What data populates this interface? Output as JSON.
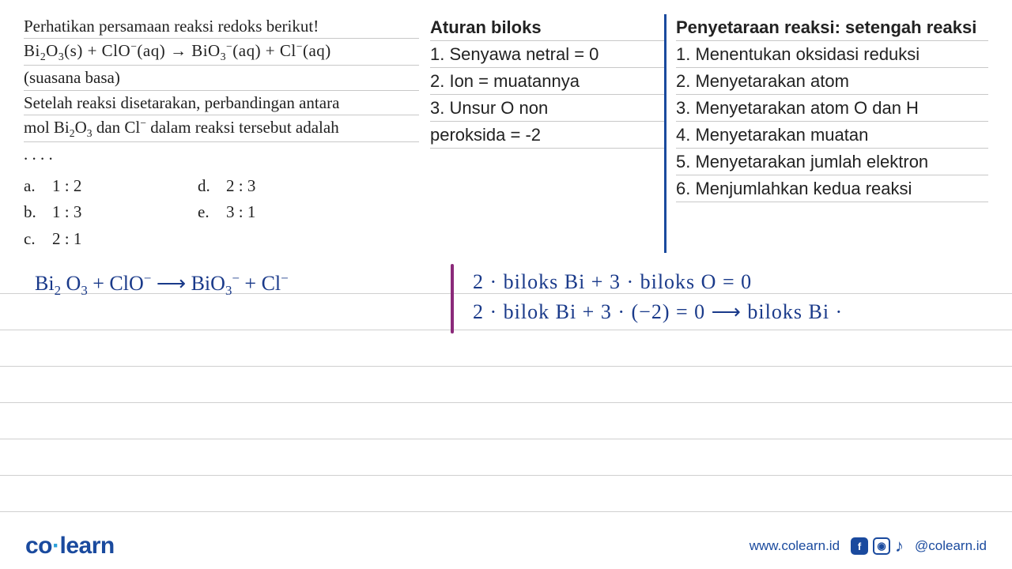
{
  "colors": {
    "text": "#222222",
    "accent_blue": "#1a4a9e",
    "handwriting": "#1a3a8a",
    "divider_purple": "#8b2a7a",
    "rule_line": "#d0d0d0",
    "logo_dot": "#2aa0d8",
    "background": "#ffffff"
  },
  "typography": {
    "question_font": "Georgia",
    "notes_font": "Arial",
    "handwriting_font": "Comic Sans MS",
    "question_fontsize": 21,
    "notes_fontsize": 22,
    "handwriting_fontsize": 26
  },
  "question": {
    "prompt": "Perhatikan persamaan reaksi redoks berikut!",
    "equation_html": "Bi<sub>2</sub>O<sub>3</sub>(s)  +  ClO<sup>−</sup>(aq)  →  BiO<sub>3</sub><sup>−</sup>(aq)  +  Cl<sup>−</sup>(aq)",
    "condition": "(suasana basa)",
    "body_line1": "Setelah reaksi disetarakan, perbandingan antara",
    "body_line2_html": "mol Bi<sub>2</sub>O<sub>3</sub> dan Cl<sup>−</sup> dalam reaksi tersebut adalah",
    "dots": ". . . .",
    "choices": [
      {
        "letter": "a.",
        "text": "1 : 2"
      },
      {
        "letter": "b.",
        "text": "1 : 3"
      },
      {
        "letter": "c.",
        "text": "2 : 1"
      },
      {
        "letter": "d.",
        "text": "2 : 3"
      },
      {
        "letter": "e.",
        "text": "3 : 1"
      }
    ]
  },
  "rules": {
    "title": "Aturan biloks",
    "items": [
      "1. Senyawa netral = 0",
      "2. Ion = muatannya",
      "3. Unsur O non",
      "peroksida = -2"
    ]
  },
  "steps": {
    "title": "Penyetaraan reaksi: setengah reaksi",
    "items": [
      "1. Menentukan oksidasi reduksi",
      "2. Menyetarakan atom",
      "3. Menyetarakan atom O dan H",
      "4. Menyetarakan muatan",
      "5. Menyetarakan jumlah elektron",
      "6. Menjumlahkan kedua reaksi"
    ]
  },
  "handwriting": {
    "left_html": "Bi<sub>2</sub> O<sub>3</sub>  +  ClO<sup>−</sup>  ⟶  BiO<sub>3</sub><sup>−</sup>   +  Cl<sup>−</sup>",
    "right_line1": "2 · biloks  Bi + 3 · biloks  O =  0",
    "right_line2": "2 · bilok  Bi +  3 · (−2)  = 0   ⟶  biloks  Bi ·"
  },
  "footer": {
    "logo_co": "co",
    "logo_dot": "·",
    "logo_learn": "learn",
    "url": "www.colearn.id",
    "handle": "@colearn.id"
  }
}
